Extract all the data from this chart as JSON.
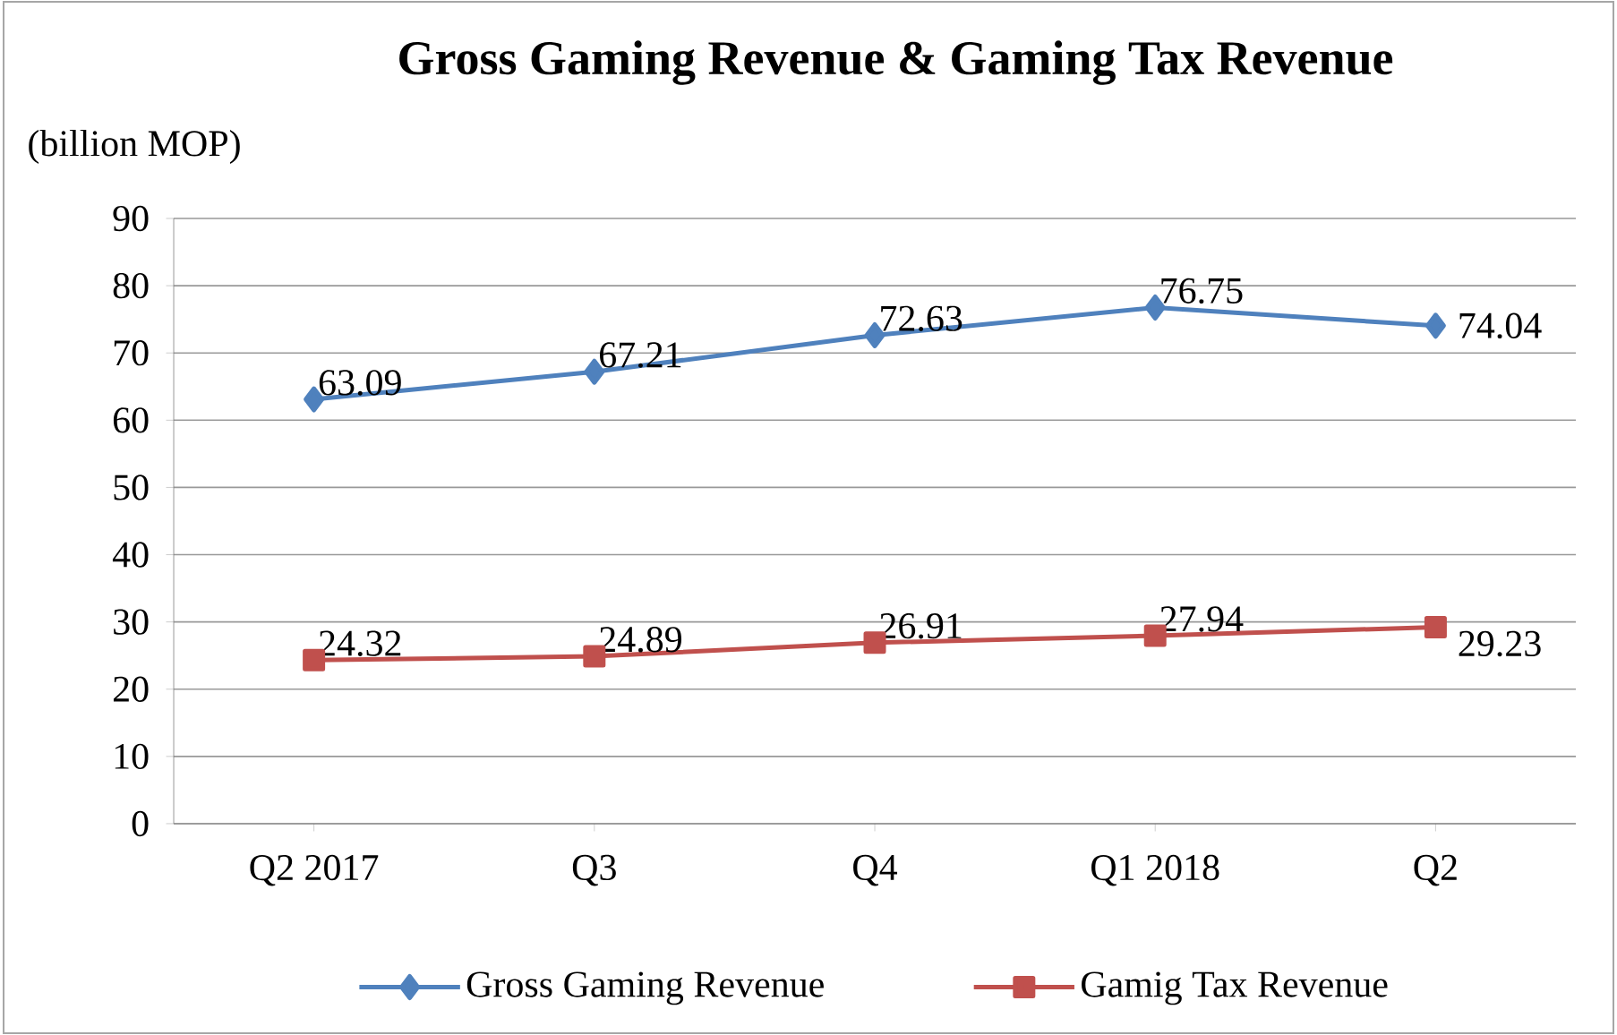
{
  "chart_data": {
    "type": "line",
    "title": "Gross Gaming Revenue & Gaming Tax Revenue",
    "ylabel": "(billion MOP)",
    "categories": [
      "Q2 2017",
      "Q3",
      "Q4",
      "Q1 2018",
      "Q2"
    ],
    "series": [
      {
        "name": "Gross Gaming Revenue",
        "color": "#4f81bd",
        "marker": "diamond",
        "values": [
          63.09,
          67.21,
          72.63,
          76.75,
          74.04
        ]
      },
      {
        "name": "Gamig Tax Revenue",
        "color": "#c0504d",
        "marker": "square",
        "values": [
          24.32,
          24.89,
          26.91,
          27.94,
          29.23
        ]
      }
    ],
    "ylim": [
      0,
      90
    ],
    "yticks": [
      0,
      10,
      20,
      30,
      40,
      50,
      60,
      70,
      80,
      90
    ],
    "grid": "y",
    "legend": "bottom",
    "data_labels": true
  }
}
